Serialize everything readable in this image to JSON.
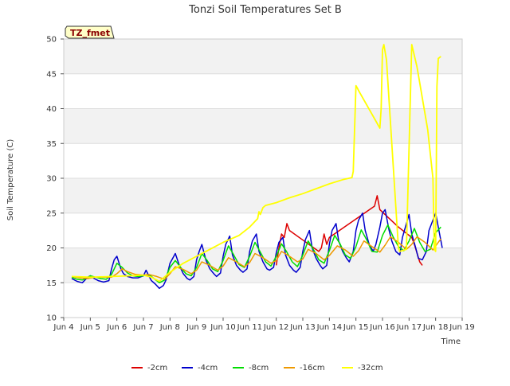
{
  "chart_data": {
    "type": "line",
    "title": "Tonzi Soil Temperatures Set B",
    "xlabel": "Time",
    "ylabel": "Soil Temperature (C)",
    "badge": "TZ_fmet",
    "xlim": [
      4,
      19
    ],
    "ylim": [
      10,
      50
    ],
    "x_ticks": [
      4,
      5,
      6,
      7,
      8,
      9,
      10,
      11,
      12,
      13,
      14,
      15,
      16,
      17,
      18,
      19
    ],
    "x_tick_labels": [
      "Jun 4",
      "Jun 5",
      "Jun 6",
      "Jun 7",
      "Jun 8",
      "Jun 9",
      "Jun 10",
      "Jun 11",
      "Jun 12",
      "Jun 13",
      "Jun 14",
      "Jun 15",
      "Jun 16",
      "Jun 17",
      "Jun 18",
      "Jun 19"
    ],
    "y_ticks": [
      10,
      15,
      20,
      25,
      30,
      35,
      40,
      45,
      50
    ],
    "y_tick_labels": [
      "10",
      "15",
      "20",
      "25",
      "30",
      "35",
      "40",
      "45",
      "50"
    ],
    "grid": true,
    "legend_position": "bottom-center",
    "series": [
      {
        "name": "-2cm",
        "color": "#dd0000",
        "x": [
          12.0,
          12.1,
          12.2,
          12.3,
          12.4,
          12.5,
          13.6,
          13.7,
          13.8,
          13.9,
          14.0,
          15.7,
          15.8,
          15.9,
          16.6,
          17.1,
          17.2,
          17.4,
          17.5
        ],
        "y": [
          17.5,
          20.0,
          22.0,
          21.5,
          23.5,
          22.5,
          19.5,
          20.0,
          22.0,
          20.5,
          21.5,
          26.0,
          27.5,
          25.5,
          23.0,
          21.5,
          20.5,
          18.0,
          17.5
        ]
      },
      {
        "name": "-4cm",
        "color": "#0000cc",
        "x": [
          4.3,
          4.5,
          4.7,
          4.9,
          5.0,
          5.15,
          5.3,
          5.5,
          5.7,
          5.8,
          5.9,
          6.0,
          6.15,
          6.25,
          6.4,
          6.6,
          6.8,
          7.0,
          7.1,
          7.2,
          7.3,
          7.45,
          7.6,
          7.75,
          7.85,
          8.0,
          8.1,
          8.2,
          8.35,
          8.5,
          8.65,
          8.75,
          8.9,
          9.0,
          9.1,
          9.2,
          9.35,
          9.5,
          9.65,
          9.75,
          9.9,
          10.0,
          10.1,
          10.25,
          10.35,
          10.5,
          10.65,
          10.75,
          10.9,
          11.0,
          11.1,
          11.25,
          11.35,
          11.5,
          11.65,
          11.75,
          11.9,
          12.0,
          12.1,
          12.25,
          12.35,
          12.5,
          12.65,
          12.75,
          12.9,
          13.0,
          13.1,
          13.25,
          13.35,
          13.5,
          13.65,
          13.75,
          13.9,
          14.0,
          14.1,
          14.25,
          14.35,
          14.5,
          14.65,
          14.75,
          14.9,
          15.0,
          15.1,
          15.25,
          15.35,
          15.5,
          15.65,
          15.75,
          15.9,
          16.0,
          16.1,
          16.25,
          16.35,
          16.5,
          16.65,
          16.75,
          16.9,
          17.0,
          17.1,
          17.25,
          17.35,
          17.5,
          17.65,
          17.75,
          17.9,
          18.0,
          18.1,
          18.25
        ],
        "y": [
          15.6,
          15.2,
          15.0,
          15.8,
          16.0,
          15.6,
          15.3,
          15.1,
          15.3,
          17.0,
          18.3,
          18.8,
          17.0,
          16.3,
          15.9,
          15.7,
          15.7,
          16.0,
          16.8,
          16.0,
          15.3,
          14.8,
          14.2,
          14.6,
          15.4,
          17.8,
          18.5,
          19.2,
          17.5,
          16.3,
          15.6,
          15.4,
          15.9,
          18.3,
          19.5,
          20.5,
          18.3,
          17.0,
          16.3,
          15.9,
          16.4,
          18.8,
          20.5,
          21.7,
          19.0,
          17.5,
          16.8,
          16.5,
          17.0,
          19.5,
          21.0,
          22.0,
          19.5,
          18.0,
          17.0,
          16.8,
          17.2,
          19.3,
          20.8,
          21.5,
          19.0,
          17.5,
          16.8,
          16.5,
          17.2,
          19.5,
          21.2,
          22.5,
          20.0,
          18.5,
          17.5,
          17.0,
          17.5,
          20.5,
          22.5,
          23.5,
          21.0,
          19.5,
          18.5,
          18.0,
          19.5,
          22.5,
          24.0,
          25.0,
          22.5,
          20.5,
          19.5,
          20.5,
          23.0,
          25.0,
          25.5,
          22.5,
          21.0,
          19.5,
          19.0,
          21.5,
          23.5,
          24.8,
          22.0,
          20.0,
          18.5,
          18.3,
          19.5,
          22.5,
          24.0,
          25.0,
          23.0,
          20.0
        ]
      },
      {
        "name": "-8cm",
        "color": "#00dd00",
        "x": [
          4.3,
          4.5,
          4.7,
          4.9,
          5.0,
          5.2,
          5.4,
          5.6,
          5.8,
          6.0,
          6.2,
          6.4,
          6.6,
          6.8,
          7.0,
          7.2,
          7.4,
          7.6,
          7.8,
          8.0,
          8.2,
          8.4,
          8.6,
          8.8,
          9.0,
          9.2,
          9.4,
          9.6,
          9.8,
          10.0,
          10.2,
          10.4,
          10.6,
          10.8,
          11.0,
          11.2,
          11.4,
          11.6,
          11.8,
          12.0,
          12.2,
          12.4,
          12.6,
          12.8,
          13.0,
          13.2,
          13.4,
          13.6,
          13.8,
          14.0,
          14.2,
          14.4,
          14.6,
          14.8,
          15.0,
          15.2,
          15.4,
          15.6,
          15.8,
          16.0,
          16.2,
          16.4,
          16.6,
          16.8,
          17.0,
          17.2,
          17.4,
          17.6,
          17.8,
          18.0,
          18.2
        ],
        "y": [
          15.8,
          15.5,
          15.4,
          15.7,
          16.0,
          15.8,
          15.6,
          15.5,
          16.2,
          17.8,
          17.2,
          16.4,
          16.0,
          15.9,
          16.0,
          16.2,
          15.6,
          15.0,
          15.4,
          17.2,
          18.2,
          17.2,
          16.3,
          16.0,
          17.2,
          19.2,
          18.2,
          17.0,
          16.6,
          18.2,
          20.3,
          19.0,
          17.6,
          17.2,
          18.8,
          20.8,
          19.4,
          18.0,
          17.4,
          18.8,
          20.6,
          19.4,
          18.0,
          17.3,
          19.0,
          21.0,
          19.8,
          18.3,
          17.8,
          19.6,
          21.8,
          20.6,
          19.0,
          18.5,
          20.2,
          22.6,
          21.2,
          19.5,
          19.4,
          21.8,
          23.3,
          21.6,
          20.2,
          19.6,
          21.0,
          22.8,
          20.8,
          19.5,
          19.8,
          22.2,
          23.0
        ]
      },
      {
        "name": "-16cm",
        "color": "#ee9900",
        "x": [
          4.3,
          4.6,
          4.9,
          5.2,
          5.5,
          5.8,
          6.0,
          6.2,
          6.4,
          6.7,
          7.0,
          7.2,
          7.5,
          7.8,
          8.0,
          8.2,
          8.5,
          8.8,
          9.0,
          9.2,
          9.5,
          9.8,
          10.0,
          10.2,
          10.5,
          10.8,
          11.0,
          11.2,
          11.5,
          11.8,
          12.0,
          12.2,
          12.5,
          12.8,
          13.0,
          13.2,
          13.5,
          13.8,
          14.0,
          14.3,
          14.6,
          14.9,
          15.1,
          15.3,
          15.6,
          15.9,
          16.1,
          16.3,
          16.6,
          16.9,
          17.1,
          17.3,
          17.6,
          17.9,
          18.1,
          18.2
        ],
        "y": [
          15.9,
          15.7,
          15.6,
          15.8,
          15.8,
          15.8,
          16.3,
          17.0,
          16.6,
          16.2,
          16.1,
          16.2,
          15.9,
          15.5,
          16.3,
          17.3,
          16.9,
          16.3,
          16.8,
          18.0,
          17.5,
          16.8,
          17.4,
          18.6,
          18.0,
          17.3,
          17.9,
          19.2,
          18.6,
          17.8,
          18.2,
          19.5,
          18.8,
          18.0,
          18.4,
          19.8,
          19.2,
          18.3,
          18.9,
          20.3,
          19.7,
          18.8,
          19.6,
          21.0,
          20.2,
          19.4,
          20.4,
          21.6,
          20.8,
          19.8,
          20.5,
          21.6,
          20.8,
          19.7,
          20.8,
          21.3
        ]
      },
      {
        "name": "-32cm",
        "color": "#ffff00",
        "x": [
          4.3,
          5.0,
          5.8,
          6.5,
          7.0,
          7.3,
          7.6,
          8.0,
          8.5,
          9.0,
          9.5,
          10.0,
          10.6,
          11.0,
          11.3,
          11.35,
          11.4,
          11.5,
          11.6,
          12.0,
          12.5,
          13.0,
          13.5,
          14.0,
          14.5,
          14.85,
          14.9,
          15.0,
          15.05,
          15.1,
          15.9,
          15.95,
          16.0,
          16.05,
          16.15,
          16.6,
          16.65,
          16.9,
          17.1,
          17.3,
          17.7,
          17.9,
          17.95,
          18.0,
          18.05,
          18.1,
          18.2
        ],
        "y": [
          15.9,
          15.8,
          15.9,
          16.0,
          16.1,
          15.8,
          15.2,
          16.5,
          17.8,
          18.8,
          19.8,
          20.8,
          21.8,
          23.0,
          24.2,
          25.2,
          24.8,
          25.8,
          26.1,
          26.5,
          27.2,
          27.8,
          28.5,
          29.2,
          29.8,
          30.1,
          31.0,
          43.3,
          43.0,
          42.6,
          37.2,
          40.0,
          48.5,
          49.2,
          47.0,
          20.0,
          19.5,
          19.8,
          49.2,
          46.0,
          37.0,
          30.0,
          19.8,
          19.5,
          43.2,
          47.2,
          47.5
        ]
      }
    ]
  }
}
